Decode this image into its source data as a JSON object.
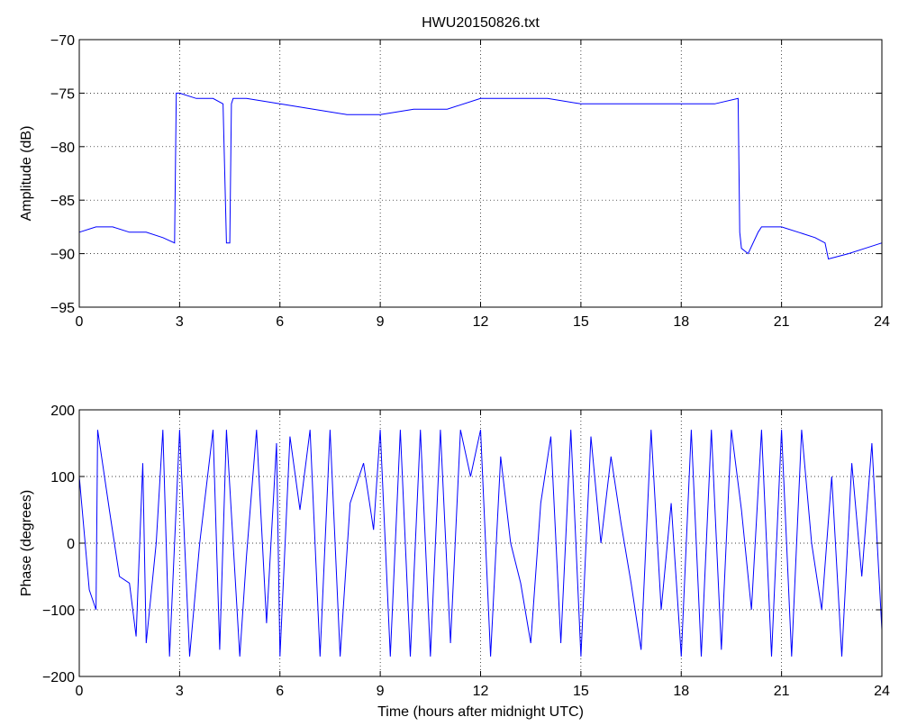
{
  "chart_data": [
    {
      "type": "line",
      "title": "HWU20150826.txt",
      "xlabel": "",
      "ylabel": "Amplitude (dB)",
      "xlim": [
        0,
        24
      ],
      "ylim": [
        -95,
        -70
      ],
      "xticks": [
        "0",
        "3",
        "6",
        "9",
        "12",
        "15",
        "18",
        "21",
        "24"
      ],
      "yticks": [
        "-70",
        "-75",
        "-80",
        "-85",
        "-90",
        "-95"
      ],
      "grid": true,
      "color": "#0000ff",
      "series": [
        {
          "x": [
            0,
            0.5,
            1,
            1.5,
            2,
            2.5,
            2.85,
            2.9,
            3.0,
            3.5,
            4.0,
            4.3,
            4.4,
            4.5,
            4.55,
            4.6,
            5,
            6,
            7,
            8,
            9,
            10,
            11,
            12,
            13,
            14,
            15,
            16,
            17,
            18,
            19,
            19.7,
            19.75,
            19.8,
            20.0,
            20.3,
            20.4,
            21,
            21.5,
            22,
            22.3,
            22.4,
            23,
            23.5,
            24
          ],
          "values": [
            -88,
            -87.5,
            -87.5,
            -88,
            -88,
            -88.5,
            -89,
            -75,
            -75,
            -75.5,
            -75.5,
            -76,
            -89,
            -89,
            -76,
            -75.5,
            -75.5,
            -76,
            -76.5,
            -77,
            -77,
            -76.5,
            -76.5,
            -75.5,
            -75.5,
            -75.5,
            -76,
            -76,
            -76,
            -76,
            -76,
            -75.5,
            -88,
            -89.5,
            -90,
            -88,
            -87.5,
            -87.5,
            -88,
            -88.5,
            -89,
            -90.5,
            -90,
            -89.5,
            -89
          ]
        }
      ]
    },
    {
      "type": "line",
      "title": "",
      "xlabel": "Time (hours after midnight UTC)",
      "ylabel": "Phase (degrees)",
      "xlim": [
        0,
        24
      ],
      "ylim": [
        -200,
        200
      ],
      "xticks": [
        "0",
        "3",
        "6",
        "9",
        "12",
        "15",
        "18",
        "21",
        "24"
      ],
      "yticks": [
        "200",
        "100",
        "0",
        "-100",
        "-200"
      ],
      "grid": true,
      "color": "#0000ff",
      "series": [
        {
          "x": [
            0,
            0.3,
            0.5,
            0.55,
            0.9,
            1.2,
            1.5,
            1.7,
            1.9,
            2.0,
            2.3,
            2.5,
            2.7,
            3.0,
            3.3,
            3.6,
            4.0,
            4.2,
            4.4,
            4.8,
            5.0,
            5.3,
            5.6,
            5.9,
            6.0,
            6.3,
            6.6,
            6.9,
            7.2,
            7.5,
            7.8,
            8.1,
            8.5,
            8.8,
            9.0,
            9.3,
            9.6,
            9.9,
            10.2,
            10.5,
            10.8,
            11.1,
            11.4,
            11.7,
            12.0,
            12.3,
            12.6,
            12.9,
            13.2,
            13.5,
            13.8,
            14.1,
            14.4,
            14.7,
            15.0,
            15.3,
            15.6,
            15.9,
            16.2,
            16.5,
            16.8,
            17.1,
            17.4,
            17.7,
            18.0,
            18.3,
            18.6,
            18.9,
            19.2,
            19.5,
            19.8,
            20.1,
            20.4,
            20.7,
            21.0,
            21.3,
            21.6,
            21.9,
            22.2,
            22.5,
            22.8,
            23.1,
            23.4,
            23.7,
            24.0
          ],
          "values": [
            100,
            -70,
            -100,
            170,
            50,
            -50,
            -60,
            -140,
            120,
            -150,
            0,
            170,
            -170,
            170,
            -170,
            0,
            170,
            -160,
            170,
            -170,
            -20,
            170,
            -120,
            150,
            -170,
            160,
            50,
            170,
            -170,
            170,
            -170,
            60,
            120,
            20,
            170,
            -170,
            170,
            -170,
            170,
            -170,
            170,
            -150,
            170,
            100,
            170,
            -170,
            130,
            0,
            -60,
            -150,
            60,
            160,
            -150,
            170,
            -170,
            160,
            0,
            130,
            30,
            -60,
            -160,
            170,
            -100,
            60,
            -170,
            170,
            -170,
            170,
            -160,
            170,
            50,
            -100,
            170,
            -170,
            170,
            -170,
            170,
            0,
            -100,
            100,
            -170,
            120,
            -50,
            150,
            -130
          ]
        }
      ]
    }
  ]
}
